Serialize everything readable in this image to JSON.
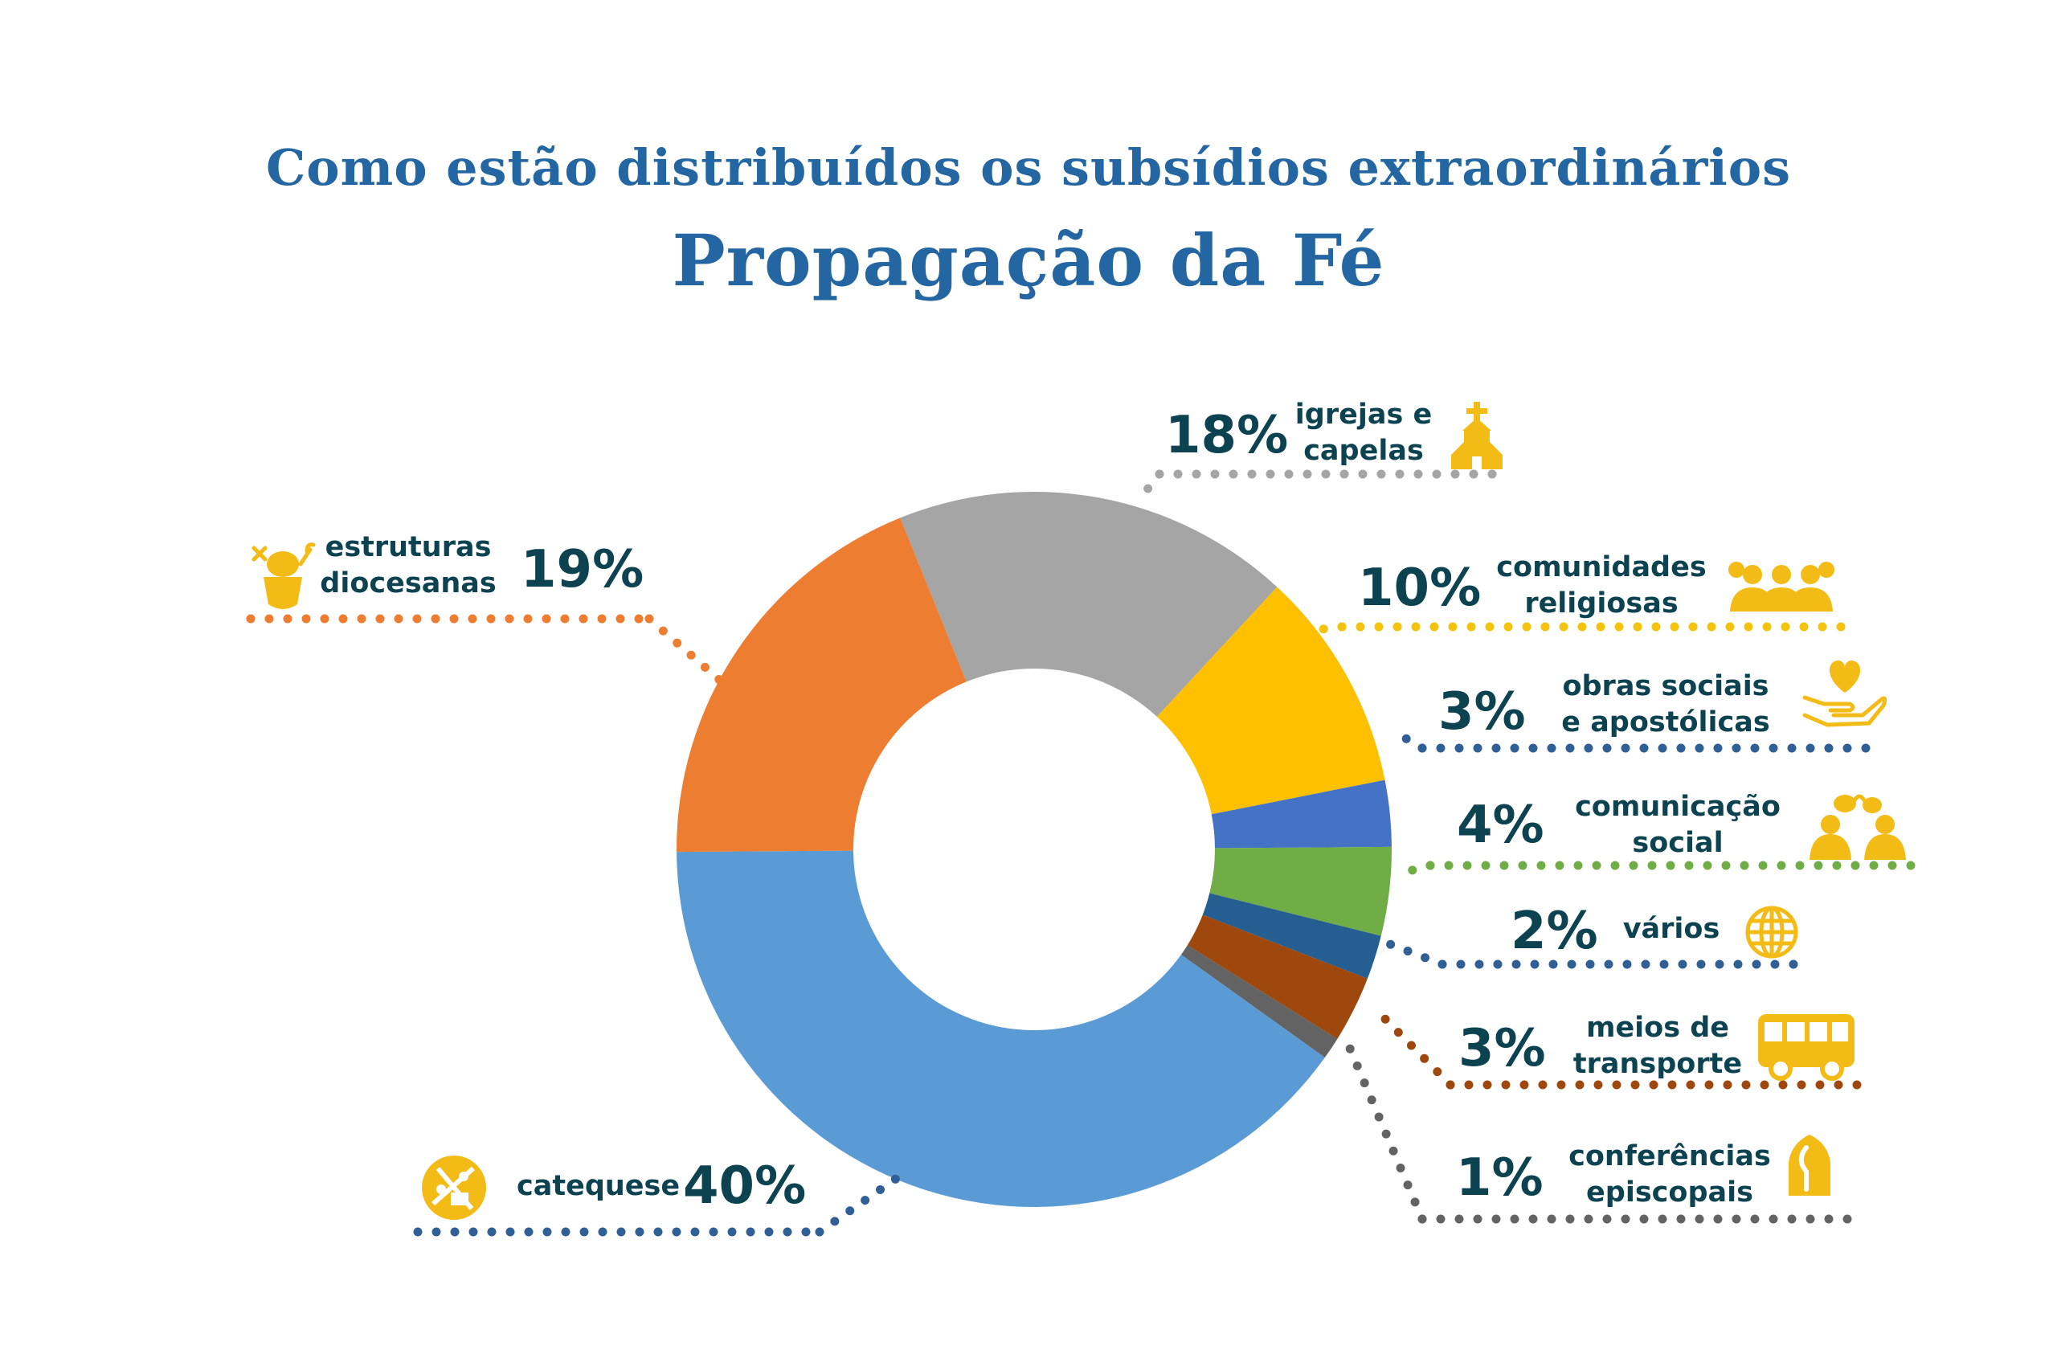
{
  "title": "Como estão distribuídos os subsídios extraordinários",
  "subtitle": "Propagação da Fé",
  "colors": {
    "title": "#2466a1",
    "text": "#0d4351",
    "icon": "#f3bb16"
  },
  "chart_data": {
    "type": "pie",
    "title": "Como estão distribuídos os subsídios extraordinários",
    "subtitle": "Propagação da Fé",
    "donut": true,
    "slices": [
      {
        "key": "igrejas",
        "label": "igrejas e capelas",
        "lines": [
          "igrejas e",
          "capelas"
        ],
        "value": 18,
        "display": "18%",
        "color": "#a5a5a5",
        "dots": "#a5a5a5",
        "icon": "church-icon"
      },
      {
        "key": "comunidades",
        "label": "comunidades religiosas",
        "lines": [
          "comunidades",
          "religiosas"
        ],
        "value": 10,
        "display": "10%",
        "color": "#ffc000",
        "dots": "#f3c30e",
        "icon": "people-group-icon"
      },
      {
        "key": "obras",
        "label": "obras sociais e apostólicas",
        "lines": [
          "obras sociais",
          "e apostólicas"
        ],
        "value": 3,
        "display": "3%",
        "color": "#4472c4",
        "dots": "#2f5f95",
        "icon": "heart-hand-icon"
      },
      {
        "key": "comunicacao",
        "label": "comunicação social",
        "lines": [
          "comunicação",
          "social"
        ],
        "value": 4,
        "display": "4%",
        "color": "#70ad47",
        "dots": "#70ad47",
        "icon": "speech-people-icon"
      },
      {
        "key": "varios",
        "label": "vários",
        "lines": [
          "vários"
        ],
        "value": 2,
        "display": "2%",
        "color": "#255e91",
        "dots": "#2f5f95",
        "icon": "globe-icon"
      },
      {
        "key": "transporte",
        "label": "meios de transporte",
        "lines": [
          "meios de",
          "transporte"
        ],
        "value": 3,
        "display": "3%",
        "color": "#9e480e",
        "dots": "#9e480e",
        "icon": "bus-icon"
      },
      {
        "key": "conferencias",
        "label": "conferências episcopais",
        "lines": [
          "conferências",
          "episcopais"
        ],
        "value": 1,
        "display": "1%",
        "color": "#636363",
        "dots": "#636363",
        "icon": "mitre-icon"
      },
      {
        "key": "catequese",
        "label": "catequese",
        "lines": [
          "catequese"
        ],
        "value": 40,
        "display": "40%",
        "color": "#5b9bd5",
        "dots": "#2f5f95",
        "icon": "catechesis-icon"
      },
      {
        "key": "estruturas",
        "label": "estruturas diocesanas",
        "lines": [
          "estruturas",
          "diocesanas"
        ],
        "value": 19,
        "display": "19%",
        "color": "#ed7d31",
        "dots": "#ed7d31",
        "icon": "mitre-crozier-icon"
      }
    ]
  }
}
